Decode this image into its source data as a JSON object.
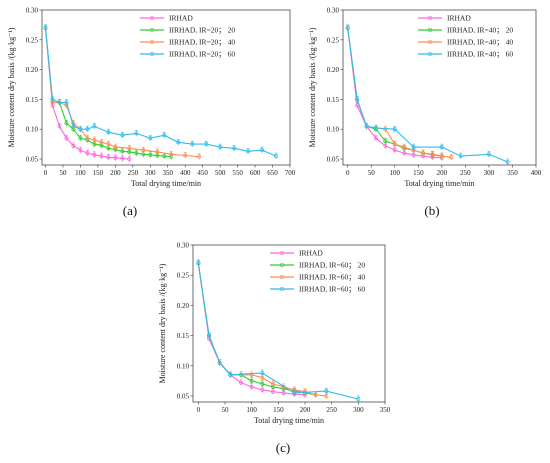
{
  "chart_data": [
    {
      "type": "line",
      "panel_label": "(a)",
      "xlabel": "Total drying time/min",
      "ylabel": "Moisture content dry basis /(kg·kg⁻¹)",
      "xlim": [
        -10,
        700
      ],
      "ylim": [
        0.04,
        0.3
      ],
      "xticks": [
        0,
        50,
        100,
        150,
        200,
        250,
        300,
        350,
        400,
        450,
        500,
        550,
        600,
        650,
        700
      ],
      "yticks": [
        0.05,
        0.1,
        0.15,
        0.2,
        0.25,
        0.3
      ],
      "ytick_labels": [
        "0.05",
        "0.10",
        "0.15",
        "0.20",
        "0.25",
        "0.30"
      ],
      "legend": "top-right",
      "series": [
        {
          "name": "IRHAD",
          "color": "#ff66e0",
          "x": [
            0,
            20,
            40,
            60,
            80,
            100,
            120,
            140,
            160,
            180,
            200,
            220,
            240
          ],
          "y": [
            0.27,
            0.14,
            0.105,
            0.085,
            0.072,
            0.065,
            0.06,
            0.057,
            0.055,
            0.053,
            0.052,
            0.051,
            0.05
          ]
        },
        {
          "name": "IIRHAD, IR=20； 20",
          "color": "#33cc33",
          "x": [
            0,
            20,
            40,
            60,
            80,
            100,
            120,
            140,
            160,
            180,
            200,
            220,
            240,
            260,
            280,
            300,
            320,
            340,
            360
          ],
          "y": [
            0.27,
            0.145,
            0.145,
            0.11,
            0.1,
            0.085,
            0.082,
            0.075,
            0.073,
            0.068,
            0.066,
            0.063,
            0.062,
            0.06,
            0.058,
            0.057,
            0.056,
            0.055,
            0.054
          ]
        },
        {
          "name": "IIRHAD, IR=20； 40",
          "color": "#ff8c55",
          "x": [
            0,
            20,
            40,
            60,
            80,
            100,
            120,
            140,
            160,
            180,
            200,
            240,
            280,
            320,
            360,
            400,
            440
          ],
          "y": [
            0.27,
            0.145,
            0.145,
            0.14,
            0.11,
            0.1,
            0.085,
            0.082,
            0.078,
            0.075,
            0.07,
            0.068,
            0.065,
            0.062,
            0.058,
            0.056,
            0.054
          ]
        },
        {
          "name": "IIRHAD, IR=20； 60",
          "color": "#33bbee",
          "x": [
            0,
            20,
            40,
            60,
            80,
            100,
            120,
            140,
            180,
            220,
            260,
            300,
            340,
            380,
            420,
            460,
            500,
            540,
            580,
            620,
            660
          ],
          "y": [
            0.27,
            0.15,
            0.145,
            0.145,
            0.105,
            0.1,
            0.1,
            0.105,
            0.095,
            0.09,
            0.093,
            0.085,
            0.09,
            0.078,
            0.075,
            0.075,
            0.07,
            0.068,
            0.063,
            0.065,
            0.055
          ]
        }
      ]
    },
    {
      "type": "line",
      "panel_label": "(b)",
      "xlabel": "Total drying time/min",
      "ylabel": "Moisture content dry basis /(kg·kg⁻¹)",
      "xlim": [
        -10,
        400
      ],
      "ylim": [
        0.04,
        0.3
      ],
      "xticks": [
        0,
        50,
        100,
        150,
        200,
        250,
        300,
        350,
        400
      ],
      "yticks": [
        0.05,
        0.1,
        0.15,
        0.2,
        0.25,
        0.3
      ],
      "ytick_labels": [
        "0.05",
        "0.10",
        "0.15",
        "0.20",
        "0.25",
        "0.30"
      ],
      "legend": "top-right",
      "series": [
        {
          "name": "IRHAD",
          "color": "#ff66e0",
          "x": [
            0,
            20,
            40,
            60,
            80,
            100,
            120,
            140,
            160,
            180,
            200
          ],
          "y": [
            0.27,
            0.14,
            0.105,
            0.085,
            0.072,
            0.065,
            0.06,
            0.057,
            0.055,
            0.053,
            0.052
          ]
        },
        {
          "name": "IIRHAD, IR=40； 20",
          "color": "#33cc33",
          "x": [
            0,
            20,
            40,
            60,
            80,
            100,
            120,
            140,
            160,
            180,
            200
          ],
          "y": [
            0.27,
            0.15,
            0.105,
            0.1,
            0.08,
            0.075,
            0.068,
            0.065,
            0.06,
            0.057,
            0.055
          ]
        },
        {
          "name": "IIRHAD, IR=40； 40",
          "color": "#ff8c55",
          "x": [
            0,
            20,
            40,
            80,
            100,
            120,
            140,
            160,
            180,
            200,
            220
          ],
          "y": [
            0.27,
            0.15,
            0.105,
            0.1,
            0.075,
            0.07,
            0.065,
            0.06,
            0.058,
            0.055,
            0.053
          ]
        },
        {
          "name": "IIRHAD, IR=40； 60",
          "color": "#33bbee",
          "x": [
            0,
            20,
            40,
            60,
            100,
            140,
            200,
            240,
            300,
            340
          ],
          "y": [
            0.27,
            0.15,
            0.105,
            0.102,
            0.1,
            0.07,
            0.07,
            0.055,
            0.058,
            0.045
          ]
        }
      ]
    },
    {
      "type": "line",
      "panel_label": "(c)",
      "xlabel": "Total drying time/min",
      "ylabel": "Moisture content dry basis /(kg·kg⁻¹)",
      "xlim": [
        -10,
        350
      ],
      "ylim": [
        0.04,
        0.3
      ],
      "xticks": [
        0,
        50,
        100,
        150,
        200,
        250,
        300,
        350
      ],
      "yticks": [
        0.05,
        0.1,
        0.15,
        0.2,
        0.25,
        0.3
      ],
      "ytick_labels": [
        "0.05",
        "0.10",
        "0.15",
        "0.20",
        "0.25",
        "0.30"
      ],
      "legend": "top-right",
      "series": [
        {
          "name": "IRHAD",
          "color": "#ff66e0",
          "x": [
            0,
            20,
            40,
            60,
            80,
            100,
            120,
            140,
            160,
            180,
            200
          ],
          "y": [
            0.27,
            0.145,
            0.105,
            0.085,
            0.072,
            0.065,
            0.06,
            0.057,
            0.055,
            0.053,
            0.052
          ]
        },
        {
          "name": "IIRHAD, IR=60； 20",
          "color": "#33cc33",
          "x": [
            0,
            20,
            40,
            60,
            80,
            100,
            120,
            140,
            160,
            180,
            200,
            220
          ],
          "y": [
            0.27,
            0.15,
            0.105,
            0.085,
            0.085,
            0.075,
            0.07,
            0.065,
            0.062,
            0.058,
            0.055,
            0.052
          ]
        },
        {
          "name": "IIRHAD, IR=60； 40",
          "color": "#ff8c55",
          "x": [
            0,
            20,
            40,
            60,
            100,
            120,
            140,
            160,
            180,
            200,
            220,
            240
          ],
          "y": [
            0.27,
            0.15,
            0.105,
            0.085,
            0.085,
            0.08,
            0.07,
            0.065,
            0.06,
            0.057,
            0.052,
            0.05
          ]
        },
        {
          "name": "IIRHAD, IR=60； 60",
          "color": "#33bbee",
          "x": [
            0,
            20,
            40,
            60,
            120,
            180,
            240,
            300
          ],
          "y": [
            0.27,
            0.15,
            0.105,
            0.085,
            0.088,
            0.055,
            0.058,
            0.045
          ]
        }
      ]
    }
  ]
}
